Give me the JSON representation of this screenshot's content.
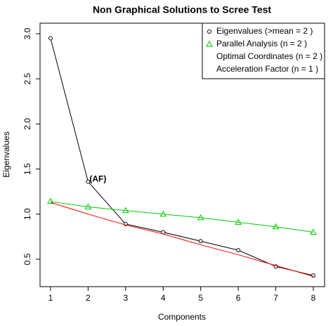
{
  "chart_data": {
    "type": "line",
    "title": "Non Graphical Solutions to Scree Test",
    "xlabel": "Components",
    "ylabel": "Eigenvalues",
    "x": [
      1,
      2,
      3,
      4,
      5,
      6,
      7,
      8
    ],
    "series": [
      {
        "color": "#000000",
        "marker": "circle",
        "values": [
          2.95,
          1.36,
          0.89,
          0.8,
          0.7,
          0.6,
          0.42,
          0.32
        ]
      },
      {
        "color": "#00cc00",
        "marker": "triangle",
        "values": [
          1.14,
          1.08,
          1.04,
          1.0,
          0.96,
          0.91,
          0.86,
          0.8
        ]
      },
      {
        "color": "#ff0000",
        "marker": null,
        "values": [
          1.13,
          1.0,
          0.88,
          0.78,
          0.66,
          0.55,
          0.43,
          0.31
        ]
      }
    ],
    "legend": [
      {
        "text": "Eigenvalues (>mean  =  2 )",
        "color": "#000000",
        "marker": "circle"
      },
      {
        "text": "Parallel Analysis (n =  2 )",
        "color": "#00cc00",
        "marker": "triangle"
      },
      {
        "text": "Optimal Coordinates (n =  2 )",
        "color": "#ff0000",
        "marker": null
      },
      {
        "text": "Acceleration Factor (n =  1 )",
        "color": "#0000ff",
        "marker": null
      }
    ],
    "legend_position": "top-right",
    "annotation": {
      "text": "(AF)",
      "x": 2,
      "y": 1.36,
      "color": "#9933cc"
    },
    "xlim": [
      0.72,
      8.3
    ],
    "ylim": [
      0.196,
      3.117
    ],
    "xticks": [
      1,
      2,
      3,
      4,
      5,
      6,
      7,
      8
    ],
    "yticks": [
      {
        "value": 0.5,
        "label": "0.5"
      },
      {
        "value": 1,
        "label": "1.0"
      },
      {
        "value": 1.5,
        "label": "1.5"
      },
      {
        "value": 2,
        "label": "2.0"
      },
      {
        "value": 2.5,
        "label": "2.5"
      },
      {
        "value": 3,
        "label": "3.0"
      }
    ]
  }
}
